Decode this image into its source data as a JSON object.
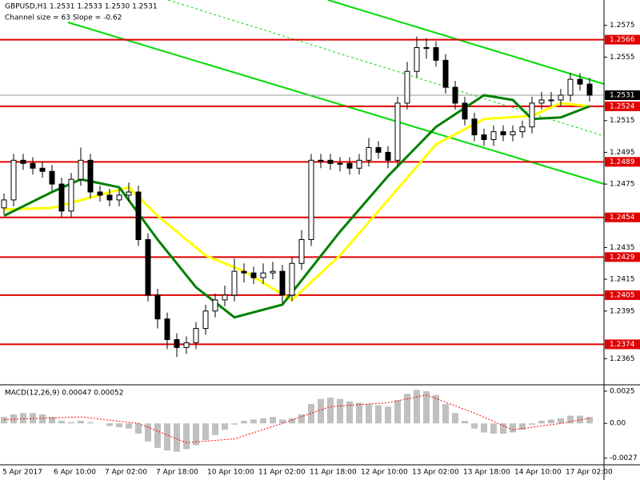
{
  "chart_data": [
    {
      "type": "candlestick",
      "title": "GBPUSD,H1  1.2531 1.2533 1.2530 1.2531",
      "subtitle": "Channel size = 63 Slope = -0.62",
      "open": [
        1.246,
        1.2465,
        1.249,
        1.2488,
        1.2485,
        1.2483,
        1.2475,
        1.2458,
        1.2478,
        1.249,
        1.247,
        1.2468,
        1.2465,
        1.2468,
        1.247,
        1.244,
        1.2405,
        1.239,
        1.2377,
        1.2372,
        1.2375,
        1.2384,
        1.2395,
        1.2402,
        1.2405,
        1.242,
        1.2419,
        1.2416,
        1.2419,
        1.242,
        1.2405,
        1.2425,
        1.244,
        1.249,
        1.249,
        1.2488,
        1.2488,
        1.2485,
        1.249,
        1.2498,
        1.2495,
        1.249,
        1.2526,
        1.2546,
        1.2561,
        1.2561,
        1.2553,
        1.2536,
        1.2526,
        1.2516,
        1.2506,
        1.2503,
        1.2508,
        1.2506,
        1.2508,
        1.2511,
        1.2526,
        1.2528,
        1.2528,
        1.2531,
        1.2541,
        1.2538
      ],
      "high": [
        1.2469,
        1.2494,
        1.2494,
        1.2492,
        1.2489,
        1.2487,
        1.2479,
        1.2482,
        1.2498,
        1.2494,
        1.2474,
        1.2472,
        1.2472,
        1.2476,
        1.2474,
        1.2444,
        1.2409,
        1.2394,
        1.2381,
        1.2379,
        1.2388,
        1.2399,
        1.2406,
        1.2411,
        1.2428,
        1.2425,
        1.2423,
        1.2425,
        1.2426,
        1.2424,
        1.2429,
        1.2446,
        1.2494,
        1.2494,
        1.2494,
        1.2492,
        1.2492,
        1.2494,
        1.2504,
        1.2502,
        1.2499,
        1.253,
        1.2552,
        1.2568,
        1.2567,
        1.2565,
        1.2557,
        1.254,
        1.253,
        1.252,
        1.251,
        1.2512,
        1.2512,
        1.2512,
        1.2515,
        1.253,
        1.2533,
        1.2533,
        1.2535,
        1.2545,
        1.2545,
        1.2542
      ],
      "low": [
        1.2456,
        1.2461,
        1.2484,
        1.2481,
        1.2479,
        1.2471,
        1.2454,
        1.2454,
        1.2474,
        1.2466,
        1.2464,
        1.2461,
        1.2461,
        1.2464,
        1.2436,
        1.2401,
        1.2384,
        1.2371,
        1.2366,
        1.2368,
        1.2371,
        1.238,
        1.2391,
        1.2398,
        1.2401,
        1.2413,
        1.2412,
        1.2412,
        1.2415,
        1.24,
        1.2401,
        1.2421,
        1.2436,
        1.2485,
        1.2484,
        1.2483,
        1.2481,
        1.2481,
        1.2486,
        1.2491,
        1.2485,
        1.2486,
        1.2522,
        1.2542,
        1.2554,
        1.2549,
        1.2532,
        1.2522,
        1.2512,
        1.2502,
        1.2499,
        1.2499,
        1.2502,
        1.2502,
        1.2504,
        1.2507,
        1.2522,
        1.2524,
        1.2524,
        1.2527,
        1.2534,
        1.2527
      ],
      "close": [
        1.2465,
        1.249,
        1.2488,
        1.2485,
        1.2483,
        1.2475,
        1.2458,
        1.2478,
        1.249,
        1.247,
        1.2468,
        1.2465,
        1.2468,
        1.247,
        1.244,
        1.2405,
        1.239,
        1.2377,
        1.2372,
        1.2375,
        1.2384,
        1.2395,
        1.2402,
        1.2405,
        1.242,
        1.2419,
        1.2416,
        1.2419,
        1.242,
        1.2405,
        1.2425,
        1.244,
        1.249,
        1.249,
        1.2488,
        1.2488,
        1.2485,
        1.249,
        1.2498,
        1.2495,
        1.249,
        1.2526,
        1.2546,
        1.2561,
        1.2561,
        1.2553,
        1.2536,
        1.2526,
        1.2516,
        1.2506,
        1.2503,
        1.2508,
        1.2506,
        1.2508,
        1.2511,
        1.2526,
        1.2528,
        1.2528,
        1.2531,
        1.2541,
        1.2538,
        1.2531
      ],
      "candle_color": "#000000",
      "ma": [
        {
          "color": "#ffff00",
          "x": [
            0,
            5,
            13,
            16,
            21,
            25,
            30,
            35,
            40,
            45,
            50,
            55,
            58,
            61
          ],
          "values": [
            1.2459,
            1.246,
            1.2473,
            1.2455,
            1.243,
            1.242,
            1.2402,
            1.243,
            1.2465,
            1.25,
            1.2516,
            1.2518,
            1.2526,
            1.2524
          ]
        },
        {
          "color": "#008000",
          "x": [
            0,
            5,
            8,
            12,
            16,
            20,
            24,
            29,
            35,
            40,
            45,
            50,
            53,
            55,
            58,
            61
          ],
          "values": [
            1.2455,
            1.247,
            1.2478,
            1.2473,
            1.244,
            1.241,
            1.2391,
            1.2399,
            1.2445,
            1.248,
            1.2511,
            1.2531,
            1.2528,
            1.2516,
            1.2517,
            1.2524
          ]
        }
      ],
      "levels": [
        1.2566,
        1.2524,
        1.2489,
        1.2454,
        1.2429,
        1.2405,
        1.2374
      ],
      "level_color": "#e00000",
      "current_price": 1.2531,
      "ylim": [
        1.2349,
        1.2591
      ],
      "yticks": [
        1.2575,
        1.2555,
        1.2515,
        1.2495,
        1.2475,
        1.2435,
        1.2415,
        1.2395,
        1.2365
      ],
      "time_labels": [
        "5 Apr 2017",
        "6 Apr 10:00",
        "7 Apr 02:00",
        "7 Apr 18:00",
        "10 Apr 10:00",
        "11 Apr 02:00",
        "11 Apr 18:00",
        "12 Apr 10:00",
        "13 Apr 02:00",
        "13 Apr 18:00",
        "14 Apr 10:00",
        "17 Apr 02:00"
      ]
    },
    {
      "type": "macd",
      "title": "MACD(12,26,9) 0.00047 0.00052",
      "values": [
        0.0005,
        0.0007,
        0.0008,
        0.0008,
        0.0007,
        0.0005,
        0.0002,
        0.0001,
        0.0002,
        0.0001,
        0.0,
        -0.0002,
        -0.0003,
        -0.0004,
        -0.0008,
        -0.0014,
        -0.0019,
        -0.0021,
        -0.0022,
        -0.002,
        -0.0017,
        -0.0013,
        -0.0009,
        -0.0005,
        -0.0001,
        0.0002,
        0.0003,
        0.0004,
        0.0005,
        0.0003,
        0.0004,
        0.0007,
        0.0015,
        0.0019,
        0.002,
        0.0019,
        0.0017,
        0.0016,
        0.0015,
        0.0014,
        0.0013,
        0.0018,
        0.0023,
        0.0026,
        0.0025,
        0.0022,
        0.0015,
        0.0008,
        0.0002,
        -0.0004,
        -0.0007,
        -0.0008,
        -0.0008,
        -0.0007,
        -0.0005,
        -0.0001,
        0.0002,
        0.0003,
        0.0004,
        0.0006,
        0.0006,
        0.0005
      ],
      "bar_color": "#c0c0c0",
      "signal": {
        "color": "#ff0000",
        "x": [
          0,
          8,
          14,
          19,
          24,
          29,
          34,
          40,
          44,
          49,
          53,
          58,
          61
        ],
        "values": [
          0.0003,
          0.0005,
          0.0,
          -0.0015,
          -0.0012,
          0.0,
          0.0013,
          0.0016,
          0.0022,
          0.0008,
          -0.0005,
          0.0,
          0.0004
        ]
      },
      "ylim": [
        -0.00315,
        0.00293
      ],
      "yticks": [
        0.0025,
        {
          "value": 0,
          "label": "0.00"
        },
        -0.0027
      ]
    }
  ]
}
